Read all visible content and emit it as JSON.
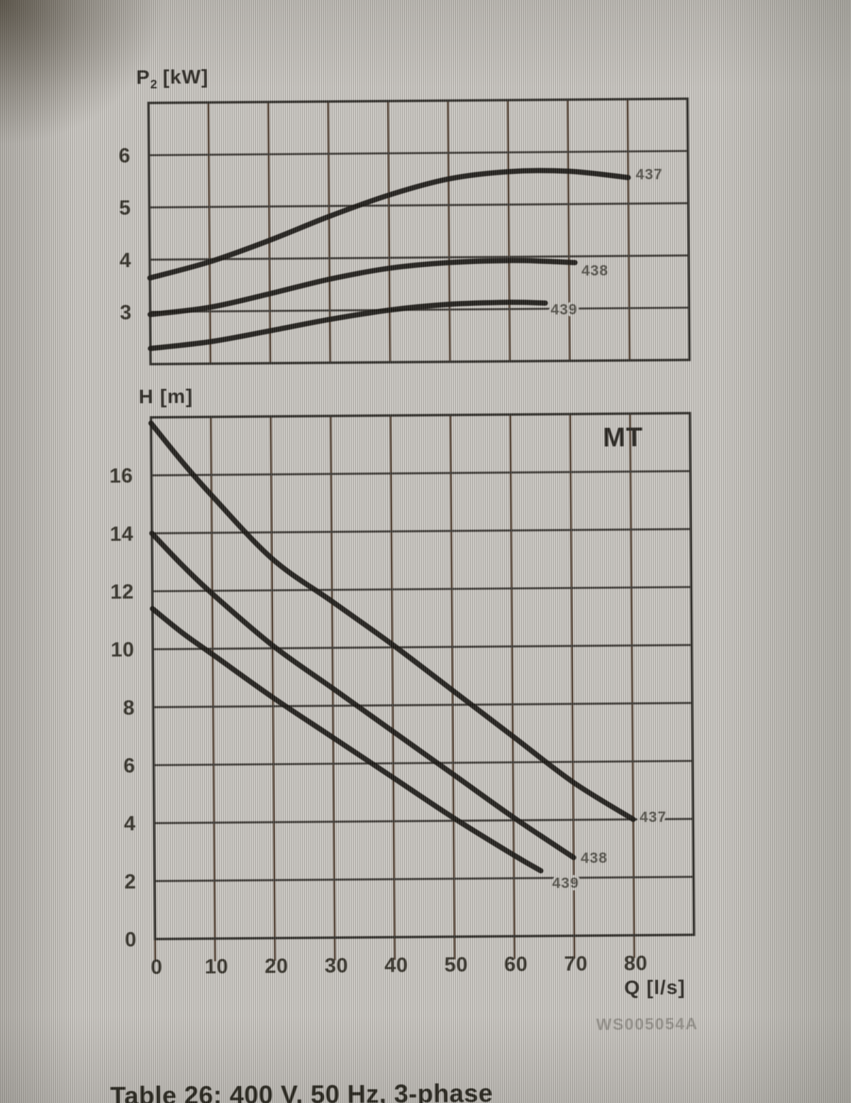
{
  "document": {
    "caption": "Table 26: 400 V, 50 Hz, 3-phase",
    "watermark": "WS005054A"
  },
  "chart_data": [
    {
      "type": "line",
      "title": "Power input vs flow",
      "ylabel": "P2 [kW]",
      "ylabel_parts": {
        "symbol": "P",
        "subscript": "2",
        "unit": "[kW]"
      },
      "xlabel": "",
      "xlim": [
        0,
        90
      ],
      "ylim": [
        2,
        7
      ],
      "x_grid_step": 10,
      "y_grid_step": 1,
      "grid": true,
      "legend_position": "curve-end",
      "yticks": [
        3,
        4,
        5,
        6
      ],
      "xticks": [],
      "series": [
        {
          "name": "437",
          "x": [
            0,
            10,
            20,
            30,
            40,
            50,
            60,
            70,
            80
          ],
          "y": [
            3.65,
            3.95,
            4.35,
            4.8,
            5.2,
            5.5,
            5.63,
            5.63,
            5.5
          ],
          "label_x": 80.8,
          "label_y": 5.57
        },
        {
          "name": "438",
          "x": [
            0,
            10,
            20,
            30,
            40,
            50,
            60,
            66,
            71
          ],
          "y": [
            2.95,
            3.08,
            3.33,
            3.6,
            3.8,
            3.9,
            3.93,
            3.91,
            3.88
          ],
          "label_x": 71.6,
          "label_y": 3.74
        },
        {
          "name": "439",
          "x": [
            0,
            10,
            20,
            30,
            40,
            50,
            60,
            66
          ],
          "y": [
            2.3,
            2.42,
            2.62,
            2.83,
            3.0,
            3.1,
            3.13,
            3.11
          ],
          "label_x": 66.4,
          "label_y": 3.0
        }
      ]
    },
    {
      "type": "line",
      "title": "Head vs flow",
      "ylabel": "H [m]",
      "xlabel": "Q [l/s]",
      "corner_label": "MT",
      "xlim": [
        0,
        90
      ],
      "ylim": [
        0,
        18
      ],
      "x_grid_step": 10,
      "y_grid_step": 2,
      "grid": true,
      "legend_position": "curve-end",
      "yticks": [
        0,
        2,
        4,
        6,
        8,
        10,
        12,
        14,
        16
      ],
      "xticks": [
        0,
        10,
        20,
        30,
        40,
        50,
        60,
        70,
        80
      ],
      "series": [
        {
          "name": "437",
          "x": [
            0,
            5,
            10,
            20,
            30,
            40,
            50,
            60,
            70,
            80
          ],
          "y": [
            17.8,
            16.5,
            15.3,
            13.1,
            11.6,
            10.1,
            8.5,
            6.9,
            5.3,
            4.0
          ],
          "label_x": 80.6,
          "label_y": 4.1
        },
        {
          "name": "438",
          "x": [
            0,
            5,
            10,
            20,
            30,
            40,
            50,
            60,
            70
          ],
          "y": [
            14.0,
            12.9,
            11.9,
            10.1,
            8.6,
            7.1,
            5.6,
            4.1,
            2.7
          ],
          "label_x": 70.7,
          "label_y": 2.7
        },
        {
          "name": "439",
          "x": [
            0,
            5,
            10,
            20,
            30,
            40,
            50,
            60,
            64.5
          ],
          "y": [
            11.4,
            10.55,
            9.8,
            8.3,
            6.9,
            5.5,
            4.1,
            2.8,
            2.25
          ],
          "label_x": 65.9,
          "label_y": 1.85
        }
      ]
    }
  ]
}
